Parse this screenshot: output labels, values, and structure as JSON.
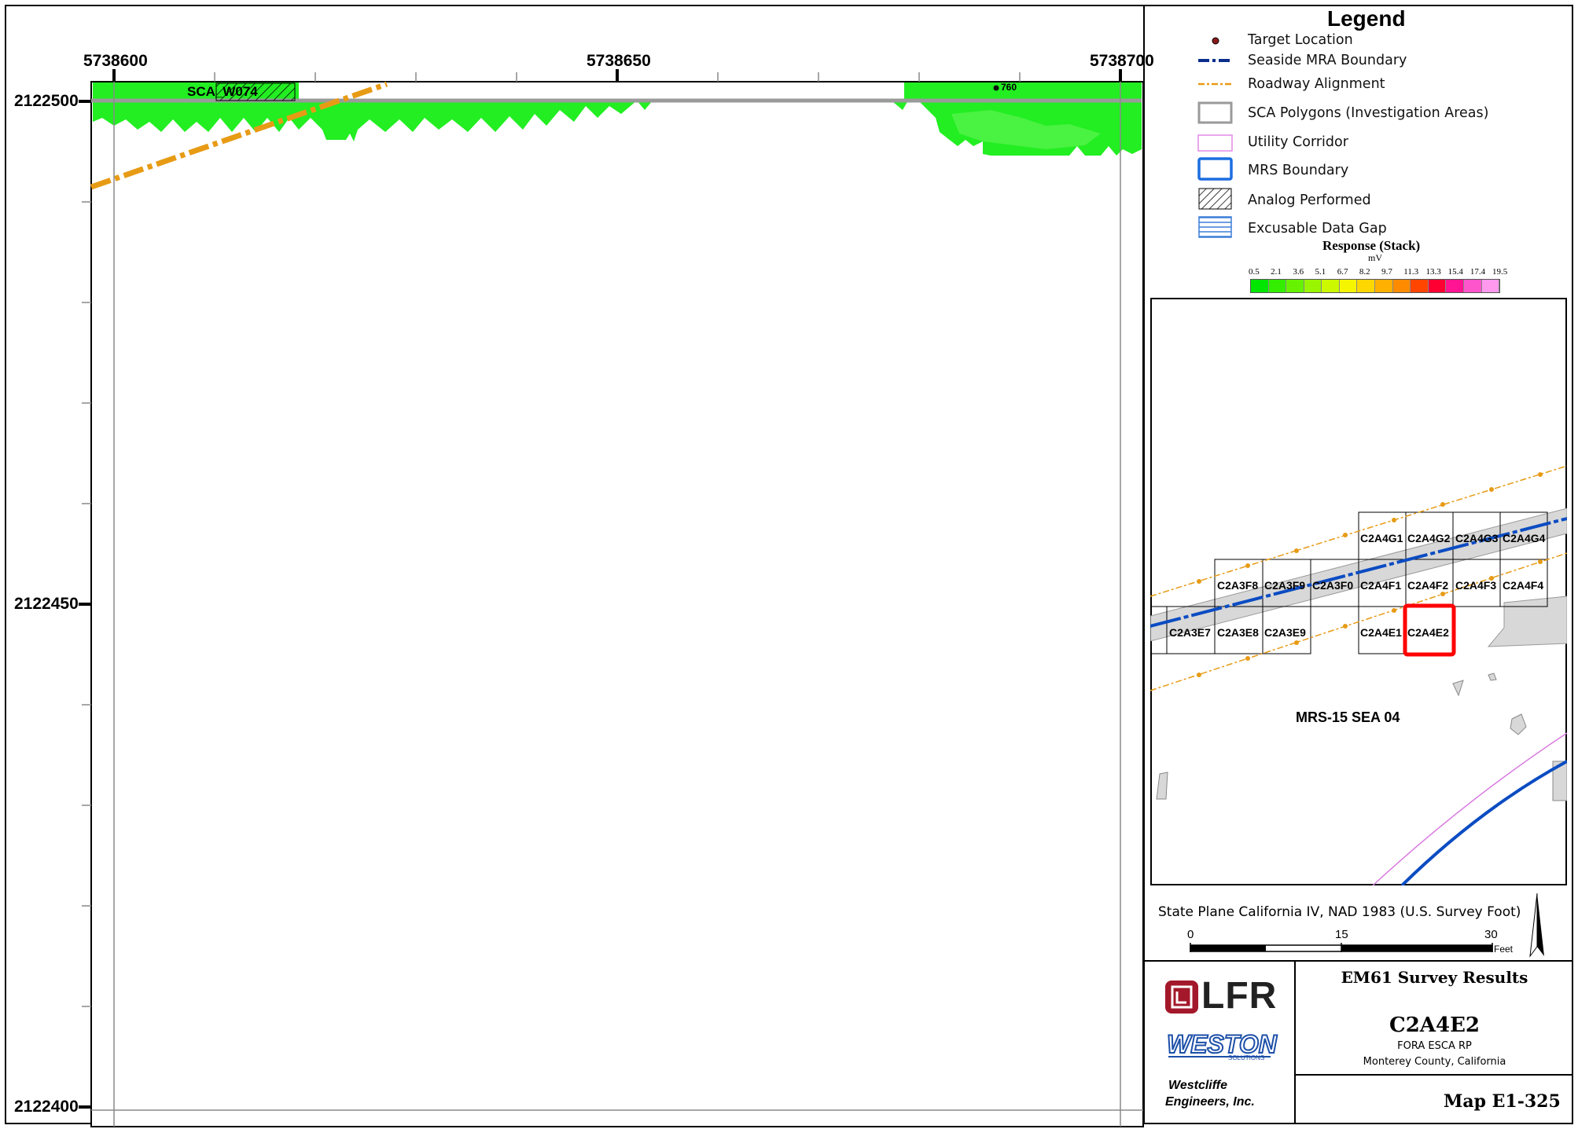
{
  "map": {
    "x_ticks": [
      {
        "label": "5738600",
        "value": 5738600
      },
      {
        "label": "5738650",
        "value": 5738650
      },
      {
        "label": "5738700",
        "value": 5738700
      }
    ],
    "y_ticks": [
      {
        "label": "2122500",
        "value": 2122500
      },
      {
        "label": "2122450",
        "value": 2122450
      },
      {
        "label": "2122400",
        "value": 2122400
      }
    ],
    "sca_label": "SCA_W074",
    "target_label": "760"
  },
  "legend": {
    "title": "Legend",
    "items": [
      {
        "label": "Target Location",
        "symbol": "target-dot-icon"
      },
      {
        "label": "Seaside MRA Boundary",
        "symbol": "dash-dot-line-icon"
      },
      {
        "label": "Roadway Alignment",
        "symbol": "orange-dash-line-icon"
      },
      {
        "label": "SCA Polygons (Investigation Areas)",
        "symbol": "gray-box-icon"
      },
      {
        "label": "Utility Corridor",
        "symbol": "violet-box-icon"
      },
      {
        "label": "MRS Boundary",
        "symbol": "blue-box-icon"
      },
      {
        "label": "Analog Performed",
        "symbol": "hatch-box-icon"
      },
      {
        "label": "Excusable Data Gap",
        "symbol": "striped-box-icon"
      }
    ],
    "response_title": "Response (Stack)",
    "response_unit": "mV",
    "scale_values": [
      "0.5",
      "2.1",
      "3.6",
      "5.1",
      "6.7",
      "8.2",
      "9.7",
      "11.3",
      "13.3",
      "15.4",
      "17.4",
      "19.5"
    ],
    "scale_colors": [
      "#00e600",
      "#33ee00",
      "#66f200",
      "#99f500",
      "#ccf800",
      "#f5f500",
      "#ffd700",
      "#ffb000",
      "#ff8c00",
      "#ff4500",
      "#ff0033",
      "#ff1493",
      "#ff55cc",
      "#ff99ee"
    ]
  },
  "inset": {
    "grid_labels": [
      "C2A4G1",
      "C2A4G2",
      "C2A4G3",
      "C2A4G4",
      "C2A3F8",
      "C2A3F9",
      "C2A3F0",
      "C2A4F1",
      "C2A4F2",
      "C2A4F3",
      "C2A4F4",
      "C2A3E7",
      "C2A3E8",
      "C2A3E9",
      "C2A4E1",
      "C2A4E2"
    ],
    "area_label": "MRS-15 SEA 04"
  },
  "projection": "State Plane California IV, NAD 1983 (U.S. Survey Foot)",
  "scalebar": {
    "labels": [
      "0",
      "15",
      "30"
    ],
    "unit": "Feet"
  },
  "title_block": {
    "company1": "LFR",
    "company2": "WESTON",
    "company2_sub": "SOLUTIONS",
    "company3_line1": "Westcliffe",
    "company3_line2": "Engineers, Inc.",
    "survey_title": "EM61 Survey Results",
    "grid_id": "C2A4E2",
    "project": "FORA ESCA RP",
    "location": "Monterey County, California",
    "map_number": "Map E1-325"
  }
}
